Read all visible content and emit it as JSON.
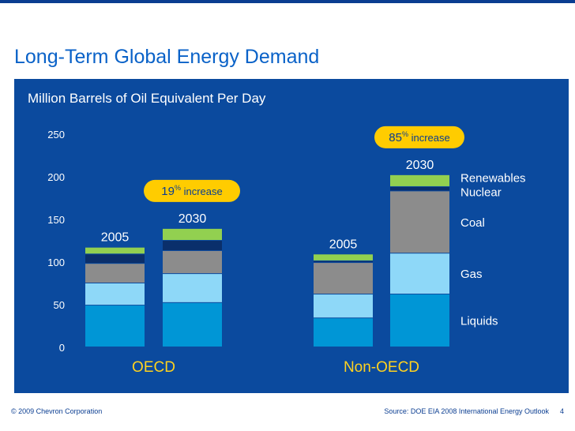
{
  "title": "Long-Term Global Energy Demand",
  "footer": {
    "copyright": "© 2009 Chevron Corporation",
    "source": "Source: DOE EIA 2008 International Energy Outlook",
    "page_number": "4"
  },
  "chart_data": {
    "type": "bar",
    "subtitle": "Million Barrels of Oil Equivalent Per Day",
    "ylim": [
      0,
      250
    ],
    "y_ticks": [
      "0",
      "50",
      "100",
      "150",
      "200",
      "250"
    ],
    "groups": [
      {
        "name": "OECD",
        "years": [
          "2005",
          "2030"
        ],
        "callout": {
          "value": "19",
          "sup": "%",
          "text": " increase"
        }
      },
      {
        "name": "Non-OECD",
        "years": [
          "2005",
          "2030"
        ],
        "callout": {
          "value": "85",
          "sup": "%",
          "text": " increase"
        }
      }
    ],
    "series": [
      {
        "name": "Liquids",
        "color": "#0096d6",
        "values": [
          49,
          52,
          34,
          62
        ]
      },
      {
        "name": "Gas",
        "color": "#8ed8f8",
        "values": [
          26,
          34,
          28,
          48
        ]
      },
      {
        "name": "Coal",
        "color": "#8c8c8c",
        "values": [
          23,
          27,
          37,
          73
        ]
      },
      {
        "name": "Nuclear",
        "color": "#0a2f6b",
        "values": [
          11,
          12,
          2,
          5
        ]
      },
      {
        "name": "Renewables",
        "color": "#92d050",
        "values": [
          8,
          14,
          8,
          14
        ]
      }
    ],
    "legend": "right"
  }
}
